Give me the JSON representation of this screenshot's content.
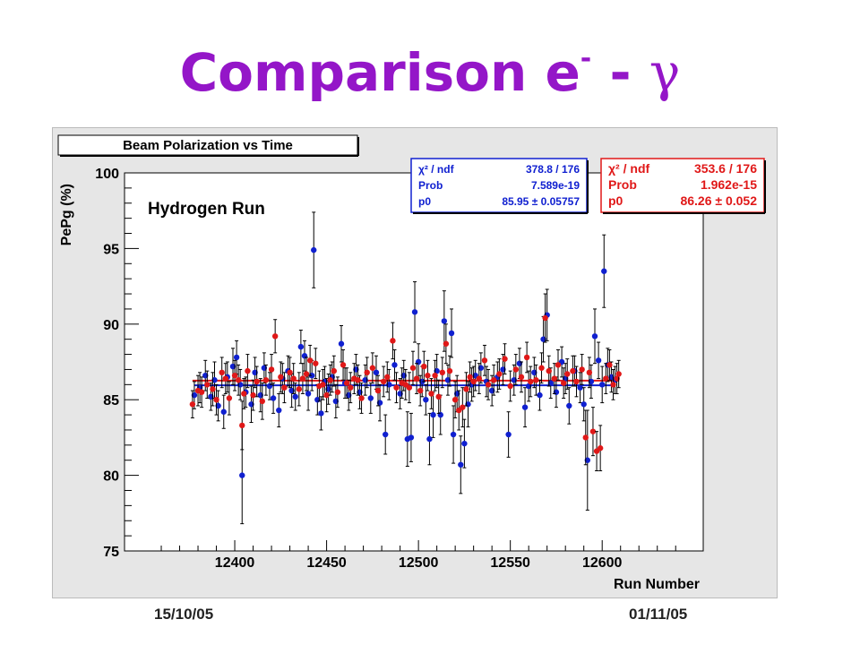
{
  "slide": {
    "title_main": "Comparison e",
    "title_sup": "-",
    "title_dash": " - ",
    "title_gamma": "γ"
  },
  "footer": {
    "left": "15/10/05",
    "right": "01/11/05"
  },
  "chart_data": {
    "type": "scatter",
    "title": "Beam Polarization vs Time",
    "annotation": "Hydrogen Run",
    "xlabel": "Run Number",
    "ylabel": "PePg (%)",
    "xlim": [
      12340,
      12655
    ],
    "ylim": [
      75,
      100
    ],
    "xticks": [
      12400,
      12450,
      12500,
      12550,
      12600
    ],
    "yticks": [
      75,
      80,
      85,
      90,
      95,
      100
    ],
    "grid": false,
    "stats_boxes": [
      {
        "series": "blue",
        "rows": [
          {
            "label": "χ² / ndf",
            "value": "378.8 / 176"
          },
          {
            "label": "Prob",
            "value": "7.589e-19"
          },
          {
            "label": "p0",
            "value": "85.95 ± 0.05757"
          }
        ]
      },
      {
        "series": "red",
        "rows": [
          {
            "label": "χ² / ndf",
            "value": "353.6 / 176"
          },
          {
            "label": "Prob",
            "value": "1.962e-15"
          },
          {
            "label": "p0",
            "value": "86.26 ± 0.052"
          }
        ]
      }
    ],
    "series": [
      {
        "color": "#1020d0",
        "fit": 85.95,
        "points": [
          [
            12378,
            85.3,
            0.9
          ],
          [
            12381,
            85.8,
            1.0
          ],
          [
            12384,
            86.6,
            1.0
          ],
          [
            12387,
            85.2,
            0.9
          ],
          [
            12389,
            86.3,
            1.2
          ],
          [
            12391,
            84.6,
            1.0
          ],
          [
            12394,
            84.2,
            1.1
          ],
          [
            12396,
            86.5,
            1.0
          ],
          [
            12399,
            87.2,
            1.2
          ],
          [
            12401,
            87.8,
            1.1
          ],
          [
            12403,
            86.0,
            1.0
          ],
          [
            12406,
            85.5,
            1.0
          ],
          [
            12409,
            84.7,
            1.2
          ],
          [
            12411,
            86.8,
            1.0
          ],
          [
            12414,
            85.3,
            1.1
          ],
          [
            12416,
            87.1,
            1.0
          ],
          [
            12419,
            85.9,
            0.9
          ],
          [
            12421,
            85.1,
            1.0
          ],
          [
            12424,
            84.3,
            1.1
          ],
          [
            12426,
            86.4,
            1.0
          ],
          [
            12429,
            86.9,
            1.0
          ],
          [
            12431,
            85.6,
            1.1
          ],
          [
            12433,
            85.2,
            0.9
          ],
          [
            12436,
            88.5,
            1.1
          ],
          [
            12438,
            87.9,
            1.0
          ],
          [
            12440,
            85.4,
            1.1
          ],
          [
            12442,
            86.6,
            1.0
          ],
          [
            12445,
            85.0,
            1.0
          ],
          [
            12447,
            84.1,
            1.1
          ],
          [
            12449,
            86.2,
            1.0
          ],
          [
            12404,
            80.0,
            3.2
          ],
          [
            12443,
            94.9,
            2.5
          ],
          [
            12451,
            85.7,
            1.0
          ],
          [
            12453,
            86.5,
            1.0
          ],
          [
            12455,
            84.9,
            1.1
          ],
          [
            12458,
            88.7,
            1.2
          ],
          [
            12460,
            86.1,
            1.0
          ],
          [
            12462,
            85.3,
            1.0
          ],
          [
            12466,
            87.0,
            1.0
          ],
          [
            12468,
            85.5,
            1.1
          ],
          [
            12471,
            86.3,
            1.0
          ],
          [
            12474,
            85.1,
            1.0
          ],
          [
            12477,
            86.8,
            1.1
          ],
          [
            12479,
            84.8,
            1.2
          ],
          [
            12482,
            82.7,
            1.3
          ],
          [
            12484,
            86.0,
            1.0
          ],
          [
            12487,
            87.3,
            1.0
          ],
          [
            12490,
            85.4,
            1.0
          ],
          [
            12492,
            86.6,
            1.0
          ],
          [
            12494,
            82.4,
            1.8
          ],
          [
            12496,
            82.5,
            1.6
          ],
          [
            12498,
            90.8,
            2.0
          ],
          [
            12500,
            87.5,
            1.2
          ],
          [
            12502,
            86.2,
            1.0
          ],
          [
            12504,
            85.0,
            1.0
          ],
          [
            12506,
            82.4,
            1.7
          ],
          [
            12508,
            84.0,
            1.5
          ],
          [
            12510,
            86.9,
            1.1
          ],
          [
            12512,
            84.0,
            1.3
          ],
          [
            12514,
            90.2,
            2.0
          ],
          [
            12516,
            86.3,
            1.0
          ],
          [
            12518,
            89.4,
            1.6
          ],
          [
            12519,
            82.7,
            1.9
          ],
          [
            12521,
            85.4,
            1.2
          ],
          [
            12523,
            80.7,
            1.9
          ],
          [
            12525,
            82.1,
            1.6
          ],
          [
            12527,
            84.7,
            1.5
          ],
          [
            12529,
            86.0,
            1.1
          ],
          [
            12531,
            86.6,
            1.0
          ],
          [
            12534,
            87.1,
            1.0
          ],
          [
            12537,
            86.2,
            1.0
          ],
          [
            12540,
            85.6,
            1.0
          ],
          [
            12543,
            86.5,
            1.0
          ],
          [
            12546,
            87.0,
            1.0
          ],
          [
            12549,
            82.7,
            1.5
          ],
          [
            12552,
            86.3,
            1.0
          ],
          [
            12555,
            87.4,
            1.0
          ],
          [
            12558,
            84.5,
            1.3
          ],
          [
            12560,
            85.9,
            1.0
          ],
          [
            12563,
            86.8,
            1.0
          ],
          [
            12566,
            85.3,
            1.0
          ],
          [
            12568,
            89.0,
            1.5
          ],
          [
            12570,
            90.6,
            1.7
          ],
          [
            12572,
            86.1,
            1.0
          ],
          [
            12575,
            85.5,
            1.0
          ],
          [
            12578,
            87.5,
            1.0
          ],
          [
            12580,
            86.4,
            1.0
          ],
          [
            12582,
            84.6,
            1.2
          ],
          [
            12585,
            86.9,
            1.0
          ],
          [
            12588,
            85.8,
            1.0
          ],
          [
            12590,
            84.7,
            1.1
          ],
          [
            12592,
            81.0,
            3.3
          ],
          [
            12594,
            86.2,
            1.1
          ],
          [
            12596,
            89.2,
            1.8
          ],
          [
            12598,
            87.6,
            1.2
          ],
          [
            12600,
            86.0,
            1.2
          ],
          [
            12601,
            93.5,
            2.4
          ],
          [
            12603,
            87.3,
            1.1
          ],
          [
            12605,
            86.5,
            1.0
          ],
          [
            12607,
            86.3,
            0.9
          ]
        ]
      },
      {
        "color": "#e01818",
        "fit": 86.26,
        "points": [
          [
            12377,
            84.7,
            0.9
          ],
          [
            12380,
            85.6,
            1.0
          ],
          [
            12382,
            85.5,
            1.0
          ],
          [
            12385,
            86.0,
            0.9
          ],
          [
            12388,
            85.7,
            1.1
          ],
          [
            12390,
            85.0,
            1.0
          ],
          [
            12393,
            86.8,
            1.0
          ],
          [
            12395,
            86.4,
            1.0
          ],
          [
            12397,
            85.1,
            1.1
          ],
          [
            12400,
            86.6,
            1.0
          ],
          [
            12402,
            86.3,
            1.0
          ],
          [
            12405,
            85.4,
            1.0
          ],
          [
            12407,
            86.9,
            1.1
          ],
          [
            12410,
            85.3,
            1.0
          ],
          [
            12412,
            86.2,
            1.0
          ],
          [
            12415,
            84.9,
            1.2
          ],
          [
            12417,
            86.3,
            1.0
          ],
          [
            12420,
            87.0,
            1.0
          ],
          [
            12422,
            89.2,
            1.1
          ],
          [
            12425,
            86.5,
            1.0
          ],
          [
            12427,
            85.8,
            1.0
          ],
          [
            12430,
            86.8,
            1.0
          ],
          [
            12432,
            86.4,
            1.0
          ],
          [
            12435,
            85.7,
            1.1
          ],
          [
            12437,
            86.4,
            1.0
          ],
          [
            12404,
            83.3,
            1.6
          ],
          [
            12439,
            86.7,
            1.1
          ],
          [
            12441,
            87.6,
            1.0
          ],
          [
            12444,
            87.4,
            1.0
          ],
          [
            12446,
            85.9,
            1.0
          ],
          [
            12448,
            86.0,
            1.0
          ],
          [
            12450,
            85.3,
            1.1
          ],
          [
            12452,
            86.3,
            1.0
          ],
          [
            12454,
            86.9,
            1.0
          ],
          [
            12456,
            85.5,
            1.0
          ],
          [
            12459,
            87.3,
            1.0
          ],
          [
            12461,
            86.1,
            1.0
          ],
          [
            12463,
            85.8,
            1.0
          ],
          [
            12465,
            86.4,
            1.0
          ],
          [
            12467,
            86.3,
            1.0
          ],
          [
            12469,
            85.1,
            1.0
          ],
          [
            12472,
            86.8,
            1.0
          ],
          [
            12475,
            87.1,
            1.0
          ],
          [
            12478,
            85.6,
            1.0
          ],
          [
            12481,
            86.2,
            1.0
          ],
          [
            12483,
            86.5,
            1.0
          ],
          [
            12486,
            88.9,
            1.2
          ],
          [
            12488,
            85.8,
            1.0
          ],
          [
            12491,
            86.1,
            1.0
          ],
          [
            12493,
            86.0,
            1.0
          ],
          [
            12495,
            85.8,
            1.0
          ],
          [
            12497,
            87.1,
            1.1
          ],
          [
            12499,
            86.4,
            1.0
          ],
          [
            12501,
            85.6,
            1.0
          ],
          [
            12503,
            87.2,
            1.0
          ],
          [
            12505,
            86.6,
            1.0
          ],
          [
            12507,
            85.4,
            1.0
          ],
          [
            12509,
            86.6,
            1.0
          ],
          [
            12511,
            85.2,
            1.1
          ],
          [
            12513,
            86.8,
            1.0
          ],
          [
            12515,
            88.7,
            1.3
          ],
          [
            12517,
            86.9,
            1.0
          ],
          [
            12520,
            85.0,
            1.2
          ],
          [
            12522,
            84.3,
            1.3
          ],
          [
            12524,
            84.5,
            1.3
          ],
          [
            12526,
            85.7,
            1.1
          ],
          [
            12528,
            86.5,
            1.0
          ],
          [
            12530,
            86.2,
            1.0
          ],
          [
            12533,
            86.4,
            1.0
          ],
          [
            12536,
            87.6,
            1.0
          ],
          [
            12538,
            86.0,
            1.0
          ],
          [
            12541,
            86.3,
            1.0
          ],
          [
            12544,
            86.7,
            1.0
          ],
          [
            12547,
            87.7,
            1.0
          ],
          [
            12550,
            85.9,
            1.0
          ],
          [
            12553,
            87.0,
            1.0
          ],
          [
            12556,
            86.5,
            1.0
          ],
          [
            12559,
            87.8,
            1.0
          ],
          [
            12561,
            86.2,
            1.0
          ],
          [
            12564,
            86.3,
            1.0
          ],
          [
            12567,
            87.1,
            1.0
          ],
          [
            12569,
            90.4,
            1.6
          ],
          [
            12571,
            86.9,
            1.0
          ],
          [
            12574,
            86.4,
            1.0
          ],
          [
            12576,
            87.3,
            1.0
          ],
          [
            12579,
            86.1,
            1.0
          ],
          [
            12581,
            86.7,
            1.0
          ],
          [
            12584,
            86.9,
            1.0
          ],
          [
            12586,
            86.2,
            1.0
          ],
          [
            12589,
            87.0,
            1.0
          ],
          [
            12591,
            82.5,
            1.8
          ],
          [
            12593,
            86.8,
            1.0
          ],
          [
            12595,
            82.9,
            1.6
          ],
          [
            12597,
            81.6,
            1.3
          ],
          [
            12599,
            81.8,
            1.5
          ],
          [
            12602,
            86.4,
            1.0
          ],
          [
            12604,
            87.3,
            1.0
          ],
          [
            12606,
            86.0,
            1.0
          ],
          [
            12608,
            86.4,
            1.0
          ],
          [
            12609,
            86.7,
            0.9
          ]
        ]
      }
    ]
  }
}
